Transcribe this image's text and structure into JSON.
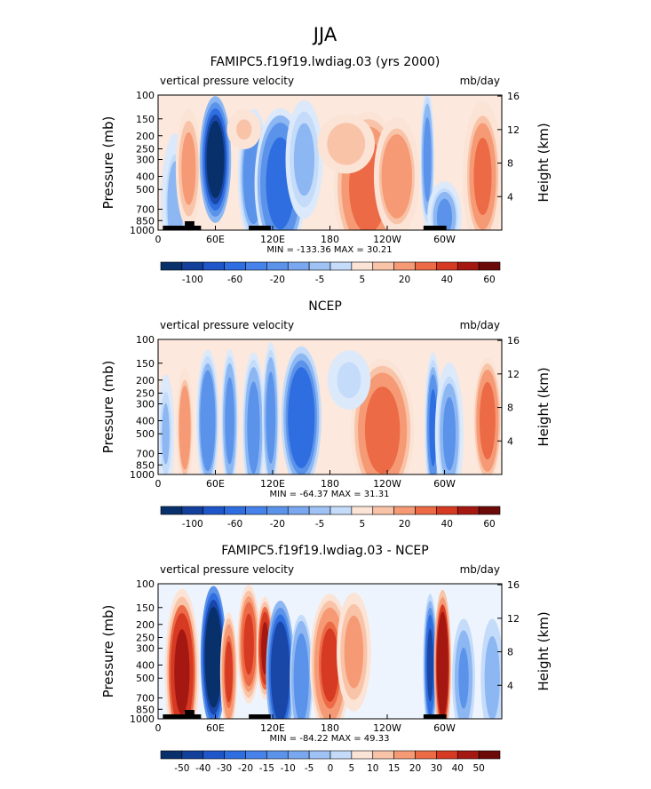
{
  "page_title": "JJA",
  "colors": {
    "blue_scale": [
      "#08306b",
      "#1947a8",
      "#2f6ee0",
      "#5b93ea",
      "#8db7f2",
      "#c4dcfa"
    ],
    "red_scale": [
      "#fbe3d6",
      "#f9c3a8",
      "#f59a74",
      "#ec6a45",
      "#d63a22",
      "#a51812",
      "#6b0a08"
    ],
    "neutral": "#ffffff",
    "topography": "#000000"
  },
  "chart_data": [
    {
      "type": "heatmap",
      "title": "FAMIPC5.f19f19.lwdiag.03 (yrs 2000)",
      "left_label": "vertical pressure velocity",
      "units": "mb/day",
      "ylabel": "Pressure (mb)",
      "y2label": "Height (km)",
      "yticks": [
        "100",
        "150",
        "200",
        "250",
        "300",
        "400",
        "500",
        "700",
        "850",
        "1000"
      ],
      "y2ticks": [
        "16",
        "12",
        "8",
        "4"
      ],
      "xticks": [
        "0",
        "60E",
        "120E",
        "180",
        "120W",
        "60W"
      ],
      "stats": "MIN = -133.36   MAX =   30.21",
      "colorbar": [
        "-100",
        "-60",
        "-20",
        "-5",
        "5",
        "20",
        "40",
        "60"
      ],
      "topography": true,
      "features": [
        {
          "lon": 18,
          "p": 650,
          "v": -12,
          "w": 10,
          "h": 360
        },
        {
          "lon": 32,
          "p": 350,
          "v": 14,
          "w": 9,
          "h": 300
        },
        {
          "lon": 60,
          "p": 300,
          "v": -133,
          "w": 11,
          "h": 320
        },
        {
          "lon": 100,
          "p": 400,
          "v": -38,
          "w": 11,
          "h": 340
        },
        {
          "lon": 128,
          "p": 450,
          "v": -55,
          "w": 18,
          "h": 380
        },
        {
          "lon": 153,
          "p": 300,
          "v": -14,
          "w": 13,
          "h": 300
        },
        {
          "lon": 220,
          "p": 480,
          "v": 26,
          "w": 24,
          "h": 380
        },
        {
          "lon": 250,
          "p": 400,
          "v": 16,
          "w": 16,
          "h": 300
        },
        {
          "lon": 197,
          "p": 230,
          "v": 8,
          "w": 20,
          "h": 150
        },
        {
          "lon": 282,
          "p": 300,
          "v": -30,
          "w": 5,
          "h": 350
        },
        {
          "lon": 300,
          "p": 800,
          "v": -22,
          "w": 12,
          "h": 180
        },
        {
          "lon": 340,
          "p": 400,
          "v": 20,
          "w": 14,
          "h": 380
        },
        {
          "lon": 90,
          "p": 180,
          "v": 5,
          "w": 12,
          "h": 100
        }
      ]
    },
    {
      "type": "heatmap",
      "title": "NCEP",
      "left_label": "vertical pressure velocity",
      "units": "mb/day",
      "ylabel": "Pressure (mb)",
      "y2label": "Height (km)",
      "yticks": [
        "100",
        "150",
        "200",
        "250",
        "300",
        "400",
        "500",
        "700",
        "850",
        "1000"
      ],
      "y2ticks": [
        "16",
        "12",
        "8",
        "4"
      ],
      "xticks": [
        "0",
        "60E",
        "120E",
        "180",
        "120W",
        "60W"
      ],
      "stats": "MIN = -64.37   MAX =   31.31",
      "colorbar": [
        "-100",
        "-60",
        "-20",
        "-5",
        "5",
        "20",
        "40",
        "60"
      ],
      "topography": false,
      "features": [
        {
          "lon": 8,
          "p": 500,
          "v": -10,
          "w": 6,
          "h": 300
        },
        {
          "lon": 28,
          "p": 450,
          "v": 18,
          "w": 6,
          "h": 300
        },
        {
          "lon": 52,
          "p": 400,
          "v": -32,
          "w": 8,
          "h": 360
        },
        {
          "lon": 75,
          "p": 400,
          "v": -28,
          "w": 6,
          "h": 360
        },
        {
          "lon": 100,
          "p": 450,
          "v": -30,
          "w": 8,
          "h": 380
        },
        {
          "lon": 118,
          "p": 380,
          "v": -25,
          "w": 6,
          "h": 380
        },
        {
          "lon": 150,
          "p": 380,
          "v": -64,
          "w": 14,
          "h": 360
        },
        {
          "lon": 235,
          "p": 470,
          "v": 28,
          "w": 22,
          "h": 360
        },
        {
          "lon": 288,
          "p": 450,
          "v": -40,
          "w": 6,
          "h": 380
        },
        {
          "lon": 305,
          "p": 500,
          "v": -20,
          "w": 10,
          "h": 360
        },
        {
          "lon": 345,
          "p": 400,
          "v": 28,
          "w": 10,
          "h": 320
        },
        {
          "lon": 200,
          "p": 200,
          "v": -6,
          "w": 15,
          "h": 150
        }
      ]
    },
    {
      "type": "heatmap",
      "title": "FAMIPC5.f19f19.lwdiag.03 - NCEP",
      "left_label": "vertical pressure velocity",
      "units": "mb/day",
      "ylabel": "Pressure (mb)",
      "y2label": "Height (km)",
      "yticks": [
        "100",
        "150",
        "200",
        "250",
        "300",
        "400",
        "500",
        "700",
        "850",
        "1000"
      ],
      "y2ticks": [
        "16",
        "12",
        "8",
        "4"
      ],
      "xticks": [
        "0",
        "60E",
        "120E",
        "180",
        "120W",
        "60W"
      ],
      "stats": "MIN = -84.22   MAX =   49.33",
      "colorbar": [
        "-50",
        "-40",
        "-30",
        "-20",
        "-15",
        "-10",
        "-5",
        "0",
        "5",
        "10",
        "15",
        "20",
        "30",
        "40",
        "50"
      ],
      "topography": true,
      "features": [
        {
          "lon": 25,
          "p": 450,
          "v": 30,
          "w": 12,
          "h": 420
        },
        {
          "lon": 58,
          "p": 350,
          "v": -84,
          "w": 9,
          "h": 360
        },
        {
          "lon": 74,
          "p": 450,
          "v": 20,
          "w": 6,
          "h": 300
        },
        {
          "lon": 95,
          "p": 280,
          "v": 22,
          "w": 8,
          "h": 300
        },
        {
          "lon": 112,
          "p": 300,
          "v": 30,
          "w": 6,
          "h": 260
        },
        {
          "lon": 128,
          "p": 450,
          "v": -45,
          "w": 10,
          "h": 360
        },
        {
          "lon": 150,
          "p": 500,
          "v": -18,
          "w": 8,
          "h": 320
        },
        {
          "lon": 180,
          "p": 400,
          "v": 20,
          "w": 14,
          "h": 360
        },
        {
          "lon": 205,
          "p": 320,
          "v": 14,
          "w": 12,
          "h": 300
        },
        {
          "lon": 285,
          "p": 400,
          "v": -30,
          "w": 5,
          "h": 360
        },
        {
          "lon": 298,
          "p": 400,
          "v": 49,
          "w": 6,
          "h": 380
        },
        {
          "lon": 320,
          "p": 500,
          "v": -10,
          "w": 8,
          "h": 300
        },
        {
          "lon": 350,
          "p": 500,
          "v": -8,
          "w": 8,
          "h": 300
        }
      ]
    }
  ]
}
